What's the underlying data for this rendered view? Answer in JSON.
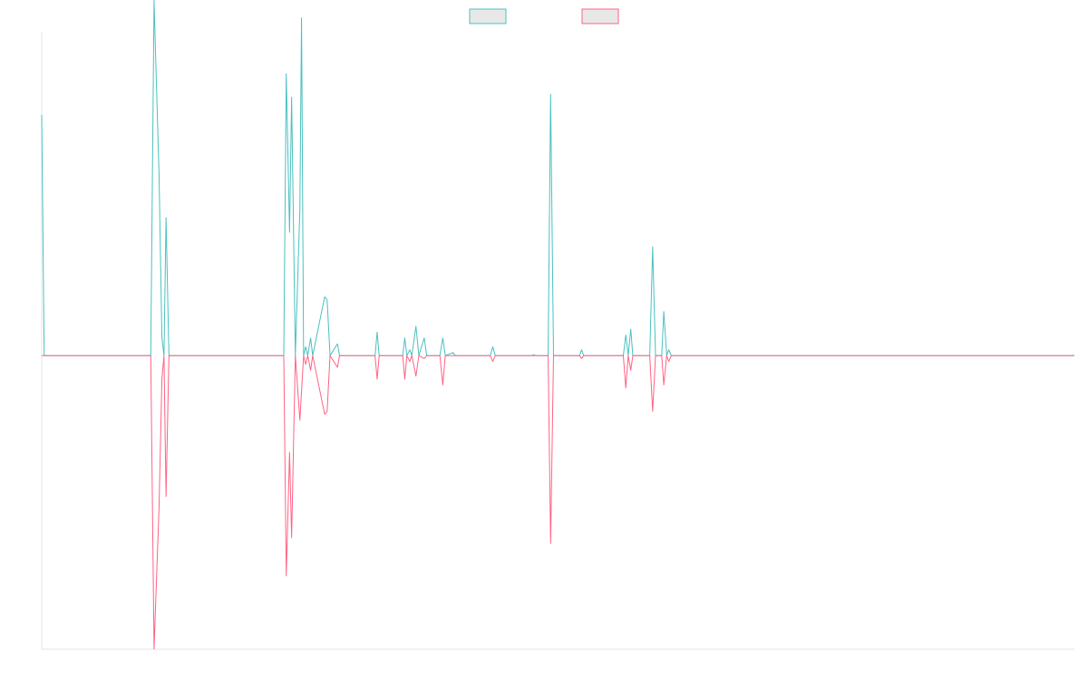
{
  "chart_data": {
    "type": "line",
    "title": "",
    "xlabel": "",
    "ylabel": "",
    "grid": false,
    "legend_position": "top-center",
    "xlim": [
      0,
      250
    ],
    "ylim": [
      -1,
      1.1
    ],
    "baseline": 0,
    "series": [
      {
        "color": "#4bc0c0",
        "legend_fill": "#e8e8e8",
        "points": [
          [
            0,
            0.82
          ],
          [
            0.6,
            0.0
          ],
          [
            26.4,
            0.0
          ],
          [
            27.2,
            1.21
          ],
          [
            28.4,
            0.62
          ],
          [
            29.1,
            0.06
          ],
          [
            29.6,
            0.0
          ],
          [
            30.1,
            0.47
          ],
          [
            30.8,
            0.0
          ],
          [
            58.6,
            0.0
          ],
          [
            59.2,
            0.96
          ],
          [
            60.0,
            0.42
          ],
          [
            60.5,
            0.88
          ],
          [
            61.4,
            0.0
          ],
          [
            62.5,
            0.5
          ],
          [
            62.9,
            1.15
          ],
          [
            63.4,
            0.0
          ],
          [
            63.9,
            0.03
          ],
          [
            64.4,
            0.0
          ],
          [
            65.1,
            0.06
          ],
          [
            65.6,
            0.0
          ],
          [
            68.5,
            0.2
          ],
          [
            69.1,
            0.19
          ],
          [
            69.8,
            0.0
          ],
          [
            71.6,
            0.04
          ],
          [
            72.1,
            0.0
          ],
          [
            80.7,
            0.0
          ],
          [
            81.2,
            0.08
          ],
          [
            81.7,
            0.0
          ],
          [
            87.4,
            0.0
          ],
          [
            87.9,
            0.06
          ],
          [
            88.4,
            0.0
          ],
          [
            89.1,
            0.02
          ],
          [
            89.6,
            0.0
          ],
          [
            90.6,
            0.1
          ],
          [
            91.3,
            0.0
          ],
          [
            92.6,
            0.06
          ],
          [
            93.2,
            0.0
          ],
          [
            96.4,
            0.0
          ],
          [
            97.1,
            0.06
          ],
          [
            97.7,
            0.0
          ],
          [
            99.6,
            0.01
          ],
          [
            100.1,
            0.0
          ],
          [
            108.6,
            0.0
          ],
          [
            109.2,
            0.03
          ],
          [
            109.8,
            0.0
          ],
          [
            118.6,
            0.0
          ],
          [
            119.1,
            0.003
          ],
          [
            119.6,
            0.0
          ],
          [
            122.6,
            0.0
          ],
          [
            123.2,
            0.89
          ],
          [
            123.9,
            0.0
          ],
          [
            130.2,
            0.0
          ],
          [
            130.7,
            0.02
          ],
          [
            131.2,
            0.0
          ],
          [
            140.8,
            0.0
          ],
          [
            141.4,
            0.07
          ],
          [
            142.0,
            0.0
          ],
          [
            142.6,
            0.09
          ],
          [
            143.1,
            0.0
          ],
          [
            147.2,
            0.0
          ],
          [
            147.9,
            0.37
          ],
          [
            148.6,
            0.0
          ],
          [
            150.1,
            0.0
          ],
          [
            150.6,
            0.15
          ],
          [
            151.3,
            0.0
          ],
          [
            151.8,
            0.02
          ],
          [
            152.4,
            0.0
          ],
          [
            250,
            0.0
          ]
        ]
      },
      {
        "color": "#ff6384",
        "legend_fill": "#e8e8e8",
        "points": [
          [
            0,
            0.0
          ],
          [
            26.4,
            0.0
          ],
          [
            27.2,
            -1.0
          ],
          [
            28.4,
            -0.52
          ],
          [
            29.1,
            -0.08
          ],
          [
            29.6,
            0.0
          ],
          [
            30.1,
            -0.48
          ],
          [
            30.8,
            0.0
          ],
          [
            58.6,
            0.0
          ],
          [
            59.2,
            -0.75
          ],
          [
            60.0,
            -0.33
          ],
          [
            60.5,
            -0.62
          ],
          [
            61.4,
            0.0
          ],
          [
            62.5,
            -0.22
          ],
          [
            63.4,
            0.0
          ],
          [
            63.9,
            -0.03
          ],
          [
            64.4,
            0.0
          ],
          [
            65.1,
            -0.05
          ],
          [
            65.6,
            0.0
          ],
          [
            68.5,
            -0.2
          ],
          [
            69.1,
            -0.19
          ],
          [
            69.8,
            0.0
          ],
          [
            71.6,
            -0.04
          ],
          [
            72.1,
            0.0
          ],
          [
            80.7,
            0.0
          ],
          [
            81.2,
            -0.08
          ],
          [
            81.7,
            0.0
          ],
          [
            87.4,
            0.0
          ],
          [
            87.9,
            -0.08
          ],
          [
            88.4,
            0.0
          ],
          [
            89.1,
            -0.02
          ],
          [
            89.6,
            0.0
          ],
          [
            90.6,
            -0.07
          ],
          [
            91.3,
            0.0
          ],
          [
            92.6,
            -0.01
          ],
          [
            93.2,
            0.0
          ],
          [
            96.4,
            0.0
          ],
          [
            97.1,
            -0.1
          ],
          [
            97.7,
            0.0
          ],
          [
            99.6,
            0.0
          ],
          [
            100.1,
            0.0
          ],
          [
            108.6,
            0.0
          ],
          [
            109.2,
            -0.02
          ],
          [
            109.8,
            0.0
          ],
          [
            118.6,
            0.0
          ],
          [
            119.1,
            0.0
          ],
          [
            119.6,
            0.0
          ],
          [
            122.6,
            0.0
          ],
          [
            123.2,
            -0.64
          ],
          [
            123.9,
            0.0
          ],
          [
            130.2,
            0.0
          ],
          [
            130.7,
            -0.01
          ],
          [
            131.2,
            0.0
          ],
          [
            140.8,
            0.0
          ],
          [
            141.4,
            -0.11
          ],
          [
            142.0,
            0.0
          ],
          [
            142.6,
            -0.05
          ],
          [
            143.1,
            0.0
          ],
          [
            147.2,
            0.0
          ],
          [
            147.9,
            -0.19
          ],
          [
            148.6,
            0.0
          ],
          [
            150.1,
            0.0
          ],
          [
            150.6,
            -0.1
          ],
          [
            151.3,
            0.0
          ],
          [
            151.8,
            -0.02
          ],
          [
            152.4,
            0.0
          ],
          [
            250,
            0.0
          ]
        ]
      }
    ]
  }
}
